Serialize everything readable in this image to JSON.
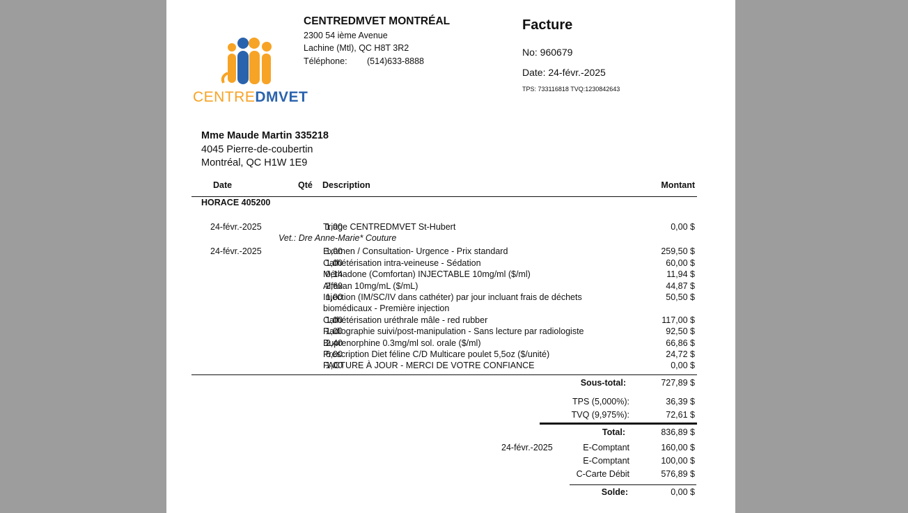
{
  "logo": {
    "part1": "CENTRE",
    "part2": "DMVET"
  },
  "clinic": {
    "name": "CENTREDMVET MONTRÉAL",
    "address1": "2300 54 ième  Avenue",
    "address2": "Lachine (Mtl), QC H8T 3R2",
    "phone_label": "Téléphone:",
    "phone": "(514)633-8888"
  },
  "invoice": {
    "title": "Facture",
    "number": "No: 960679",
    "date": "Date:  24-févr.-2025",
    "taxes": "TPS: 733116818  TVQ:1230842643"
  },
  "client": {
    "name": "Mme Maude Martin  335218",
    "address1": "4045 Pierre-de-coubertin",
    "address2": "Montréal, QC H1W 1E9"
  },
  "table": {
    "headers": [
      "Date",
      "Qté",
      "Description",
      "Montant"
    ],
    "patient": "HORACE  405200",
    "rows": [
      {
        "date": "24-févr.-2025",
        "qty": "1,00",
        "description": "Triage CENTREDMVET St-Hubert",
        "amount": "0,00 $",
        "note": "Vet.: Dre Anne-Marie* Couture"
      },
      {
        "date": "24-févr.-2025",
        "qty": "1,00",
        "description": "Examen / Consultation- Urgence - Prix standard",
        "amount": "259,50 $"
      },
      {
        "qty": "1,00",
        "description": "Cathétérisation intra-veineuse - Sédation",
        "amount": "60,00 $"
      },
      {
        "qty": "0,14",
        "description": "Méthadone (Comfortan) INJECTABLE 10mg/ml ($/ml)",
        "amount": "11,94 $"
      },
      {
        "qty": "2,60",
        "description": "Alfaxan 10mg/mL ($/mL)",
        "amount": "44,87 $"
      },
      {
        "qty": "1,00",
        "description": "Injection (IM/SC/IV dans cathéter) par jour incluant frais de déchets biomédicaux - Première injection",
        "amount": "50,50 $"
      },
      {
        "qty": "1,00",
        "description": "Cathétérisation uréthrale mâle - red rubber",
        "amount": "117,00 $"
      },
      {
        "qty": "1,00",
        "description": "Radiographie suivi/post-manipulation - Sans lecture par radiologiste",
        "amount": "92,50 $"
      },
      {
        "qty": "2,40",
        "description": "Buprenorphine 0.3mg/ml sol. orale ($/ml)",
        "amount": "66,86 $"
      },
      {
        "qty": "6,00",
        "description": "Prescription Diet féline C/D Multicare poulet 5,5oz ($/unité)",
        "amount": "24,72 $"
      },
      {
        "qty": "1,00",
        "description": "FACTURE À JOUR - MERCI DE VOTRE CONFIANCE",
        "amount": "0,00 $"
      }
    ]
  },
  "totals": {
    "subtotal_label": "Sous-total:",
    "subtotal": "727,89 $",
    "tps_label": "TPS  (5,000%):",
    "tps": "36,39 $",
    "tvq_label": "TVQ  (9,975%):",
    "tvq": "72,61 $",
    "total_label": "Total:",
    "total": "836,89 $",
    "payments": [
      {
        "date": "24-févr.-2025",
        "method": "E-Comptant",
        "amount": "160,00 $"
      },
      {
        "method": "E-Comptant",
        "amount": "100,00 $"
      },
      {
        "method": "C-Carte Débit",
        "amount": "576,89 $"
      }
    ],
    "balance_label": "Solde:",
    "balance": "0,00 $"
  }
}
